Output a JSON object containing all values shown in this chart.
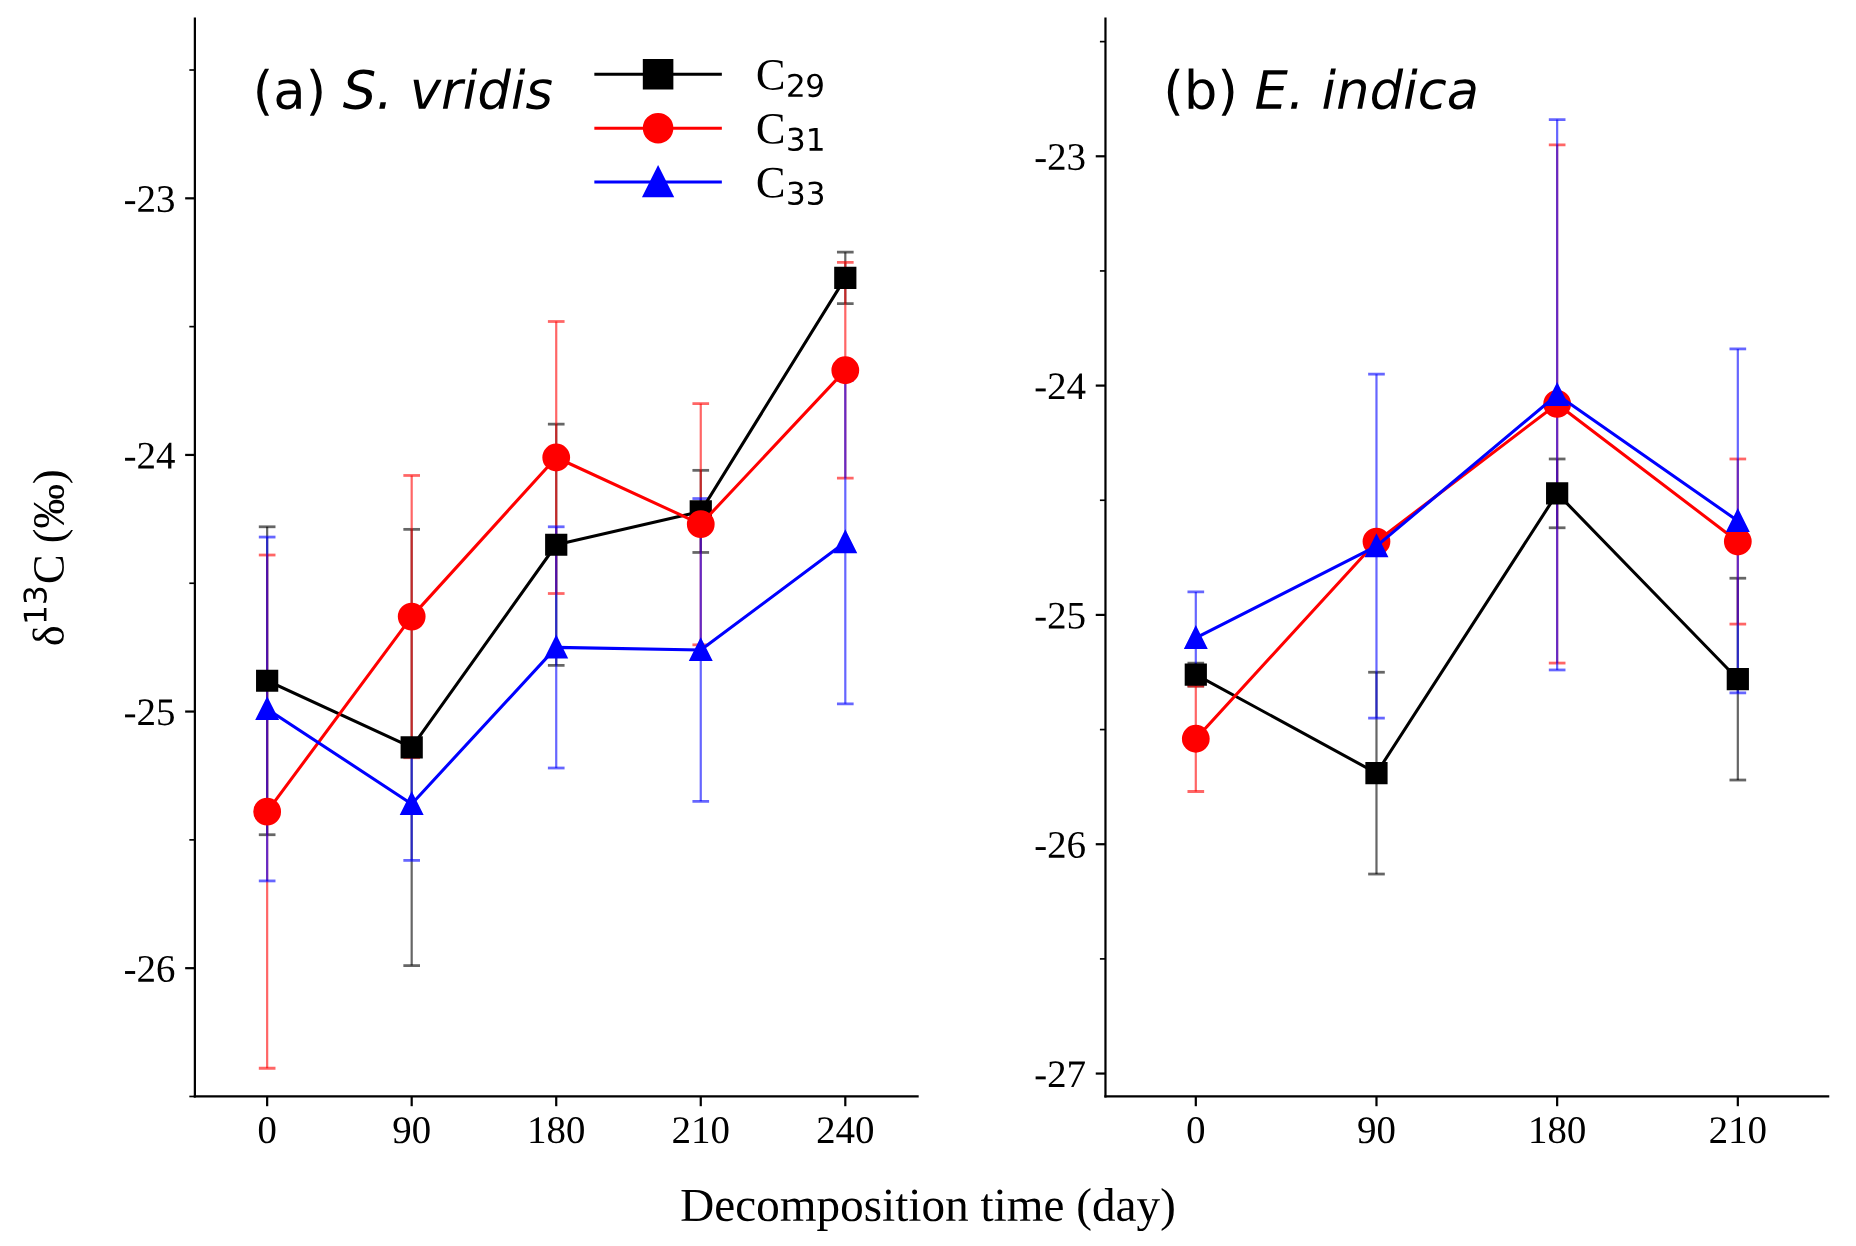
{
  "chart_data": [
    {
      "type": "line",
      "title": "(a) S. vridis",
      "ylabel": "δ$^{13}$C (‰)",
      "xlabel": "Decomposition time (day)",
      "categories": [
        "0",
        "90",
        "180",
        "210",
        "240"
      ],
      "ylim": [
        -26.5,
        -22.3
      ],
      "yticks": [
        -26,
        -25,
        -24,
        -23
      ],
      "legend": "top right",
      "grid": false,
      "series": [
        {
          "name": "C$_{29}$",
          "color": "#000000",
          "marker": "square",
          "values": [
            -24.88,
            -25.14,
            -24.35,
            -24.22,
            -23.31
          ],
          "errors": [
            0.6,
            0.85,
            0.47,
            0.16,
            0.1
          ]
        },
        {
          "name": "C$_{31}$",
          "color": "#ff0000",
          "marker": "circle",
          "values": [
            -25.39,
            -24.63,
            -24.01,
            -24.27,
            -23.67
          ],
          "errors": [
            1.0,
            0.55,
            0.53,
            0.47,
            0.42
          ]
        },
        {
          "name": "C$_{33}$",
          "color": "#0000ff",
          "marker": "triangle",
          "values": [
            -24.99,
            -25.36,
            -24.75,
            -24.76,
            -24.34
          ],
          "errors": [
            0.67,
            0.22,
            0.47,
            0.59,
            0.63
          ]
        }
      ]
    },
    {
      "type": "line",
      "title": "(b) E. indica",
      "categories": [
        "0",
        "90",
        "180",
        "210"
      ],
      "ylim": [
        -27.1,
        -22.4
      ],
      "yticks": [
        -27,
        -26,
        -25,
        -24,
        -23
      ],
      "grid": false,
      "series": [
        {
          "color": "#000000",
          "marker": "square",
          "values": [
            -25.26,
            -25.69,
            -24.47,
            -25.28
          ],
          "errors": [
            0.05,
            0.44,
            0.15,
            0.44
          ]
        },
        {
          "color": "#ff0000",
          "marker": "circle",
          "values": [
            -25.54,
            -24.68,
            -24.08,
            -24.68
          ],
          "errors": [
            0.23,
            0.03,
            1.13,
            0.36
          ]
        },
        {
          "color": "#0000ff",
          "marker": "triangle",
          "values": [
            -25.1,
            -24.7,
            -24.04,
            -24.59
          ],
          "errors": [
            0.2,
            0.75,
            1.2,
            0.75
          ]
        }
      ]
    }
  ]
}
